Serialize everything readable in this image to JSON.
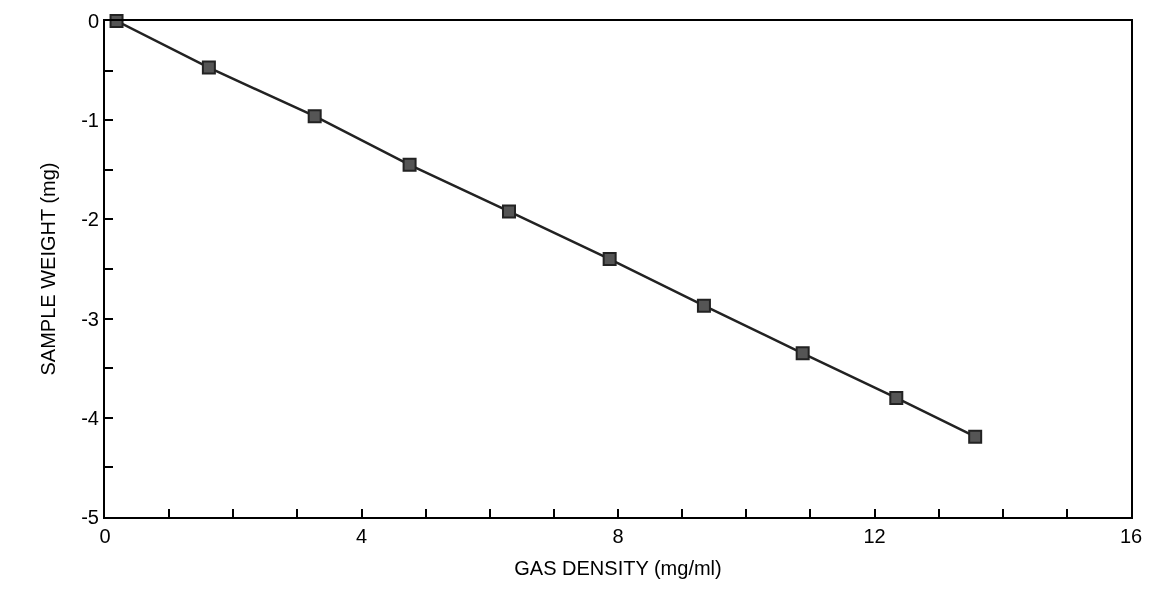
{
  "chart_data": {
    "type": "line",
    "xlabel": "GAS DENSITY (mg/ml)",
    "ylabel": "SAMPLE WEIGHT (mg)",
    "x": [
      0.18,
      1.62,
      3.27,
      4.75,
      6.3,
      7.87,
      9.34,
      10.88,
      12.34,
      13.57
    ],
    "series": [
      {
        "color": "#222222",
        "values": [
          0,
          -0.47,
          -0.96,
          -1.45,
          -1.92,
          -2.4,
          -2.87,
          -3.35,
          -3.8,
          -4.19
        ]
      }
    ],
    "marker": "square",
    "line_style": "solid",
    "grid": false,
    "xlim": [
      0,
      16
    ],
    "xticks": [
      0,
      {
        "value": 1,
        "label": null
      },
      {
        "value": 2,
        "label": null
      },
      {
        "value": 3,
        "label": null
      },
      4,
      {
        "value": 5,
        "label": null
      },
      {
        "value": 6,
        "label": null
      },
      {
        "value": 7,
        "label": null
      },
      8,
      {
        "value": 9,
        "label": null
      },
      {
        "value": 10,
        "label": null
      },
      {
        "value": 11,
        "label": null
      },
      12,
      {
        "value": 13,
        "label": null
      },
      {
        "value": 14,
        "label": null
      },
      {
        "value": 15,
        "label": null
      },
      16
    ],
    "ylim": [
      -5,
      0
    ],
    "yticks": [
      -5,
      {
        "value": -4.5,
        "label": null
      },
      -4,
      {
        "value": -3.5,
        "label": null
      },
      -3,
      {
        "value": -2.5,
        "label": null
      },
      -2,
      {
        "value": -1.5,
        "label": null
      },
      -1,
      {
        "value": -0.5,
        "label": null
      },
      0
    ]
  }
}
